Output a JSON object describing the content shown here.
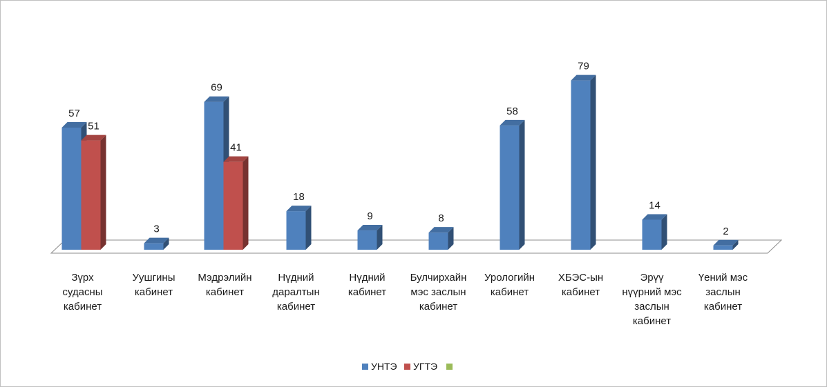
{
  "chart_data": {
    "type": "bar",
    "style": "3d-clustered-column",
    "categories": [
      [
        "Зүрх",
        "судасны",
        "кабинет"
      ],
      [
        "Уушгины",
        "кабинет"
      ],
      [
        "Мэдрэлийн",
        "кабинет"
      ],
      [
        "Нүдний",
        "даралтын",
        "кабинет"
      ],
      [
        "Нүдний",
        "кабинет"
      ],
      [
        "Булчирхайн",
        "мэс заслын",
        "кабинет"
      ],
      [
        "Урологийн",
        "кабинет"
      ],
      [
        "ХБЭС-ын",
        "кабинет"
      ],
      [
        "Эрүү",
        "нүүрний мэс",
        "заслын",
        "кабинет"
      ],
      [
        "Үений мэс",
        "заслын",
        "кабинет"
      ]
    ],
    "series": [
      {
        "name": "УНТЭ",
        "color": "#4f81bd",
        "values": [
          57,
          3,
          69,
          18,
          9,
          8,
          58,
          79,
          14,
          2
        ]
      },
      {
        "name": "УГТЭ",
        "color": "#c0504d",
        "values": [
          51,
          null,
          41,
          null,
          null,
          null,
          null,
          null,
          null,
          null
        ]
      },
      {
        "name": "",
        "color": "#9bbb59",
        "values": [
          null,
          null,
          null,
          null,
          null,
          null,
          null,
          null,
          null,
          null
        ]
      }
    ],
    "ylim": [
      0,
      85
    ],
    "grid": false,
    "legend": "bottom"
  }
}
